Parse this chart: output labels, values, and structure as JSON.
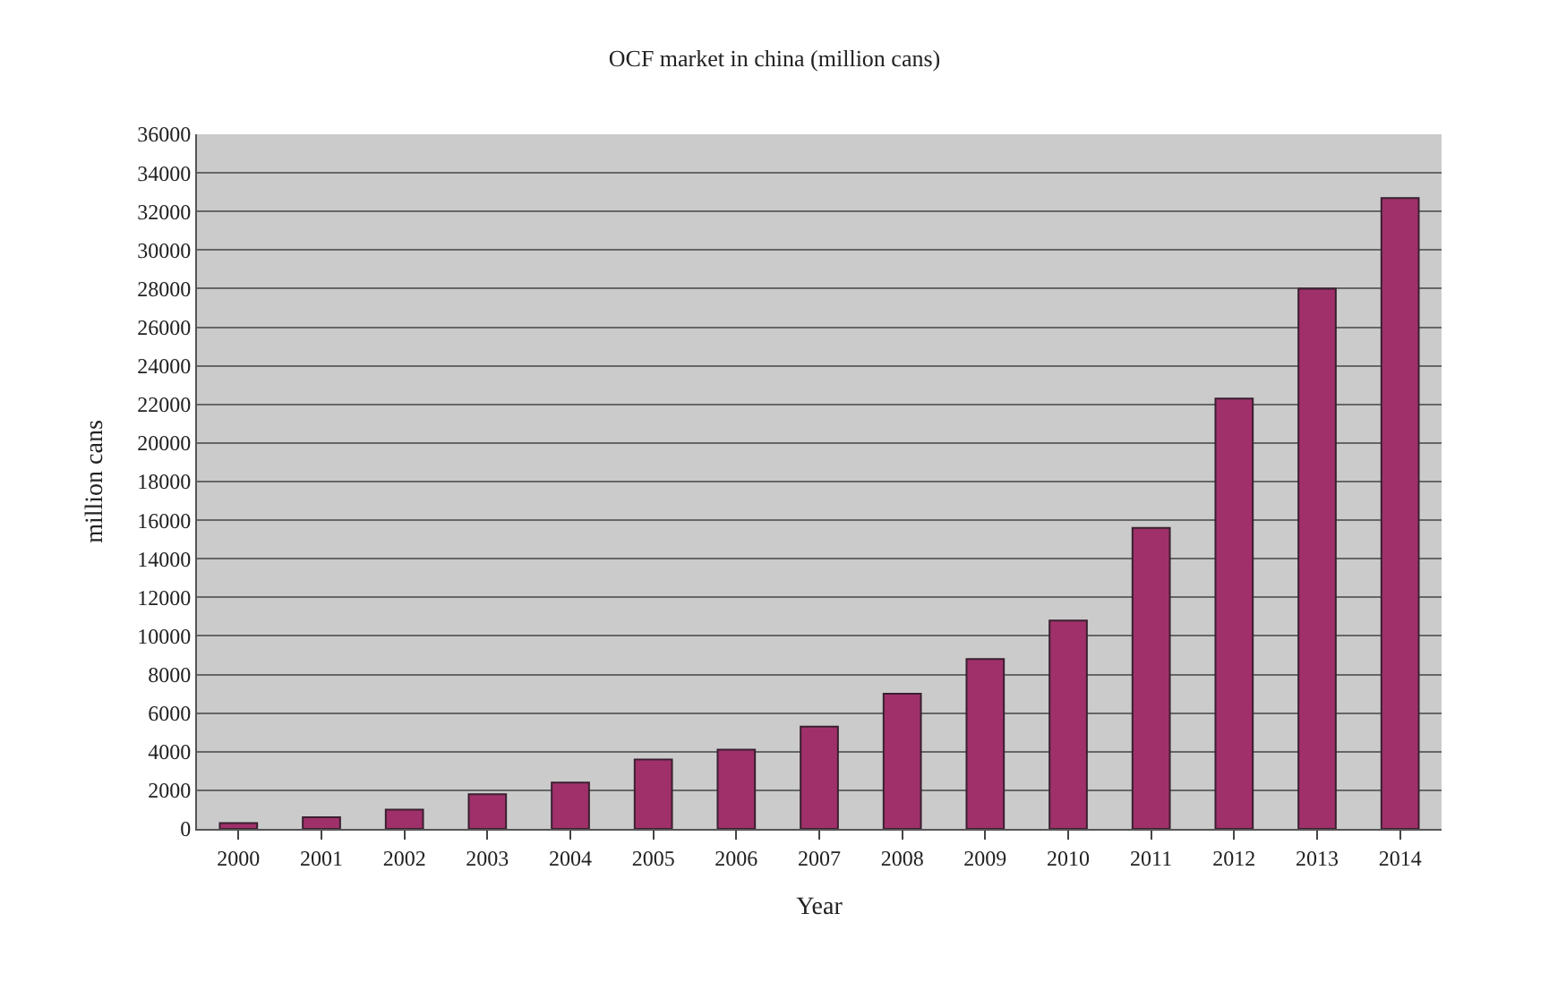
{
  "chart_data": {
    "type": "bar",
    "title": "OCF market in china (million cans)",
    "xlabel": "Year",
    "ylabel": "million cans",
    "categories": [
      "2000",
      "2001",
      "2002",
      "2003",
      "2004",
      "2005",
      "2006",
      "2007",
      "2008",
      "2009",
      "2010",
      "2011",
      "2012",
      "2013",
      "2014"
    ],
    "values": [
      300,
      600,
      1000,
      1800,
      2400,
      3600,
      4100,
      5300,
      7000,
      8800,
      10800,
      15600,
      22300,
      28000,
      32700
    ],
    "color": "#a0306a",
    "ylim": [
      0,
      36000
    ],
    "yticks": [
      0,
      2000,
      4000,
      6000,
      8000,
      10000,
      12000,
      14000,
      16000,
      18000,
      20000,
      22000,
      24000,
      26000,
      28000,
      30000,
      32000,
      34000,
      36000
    ],
    "grid": "y",
    "legend": false
  }
}
